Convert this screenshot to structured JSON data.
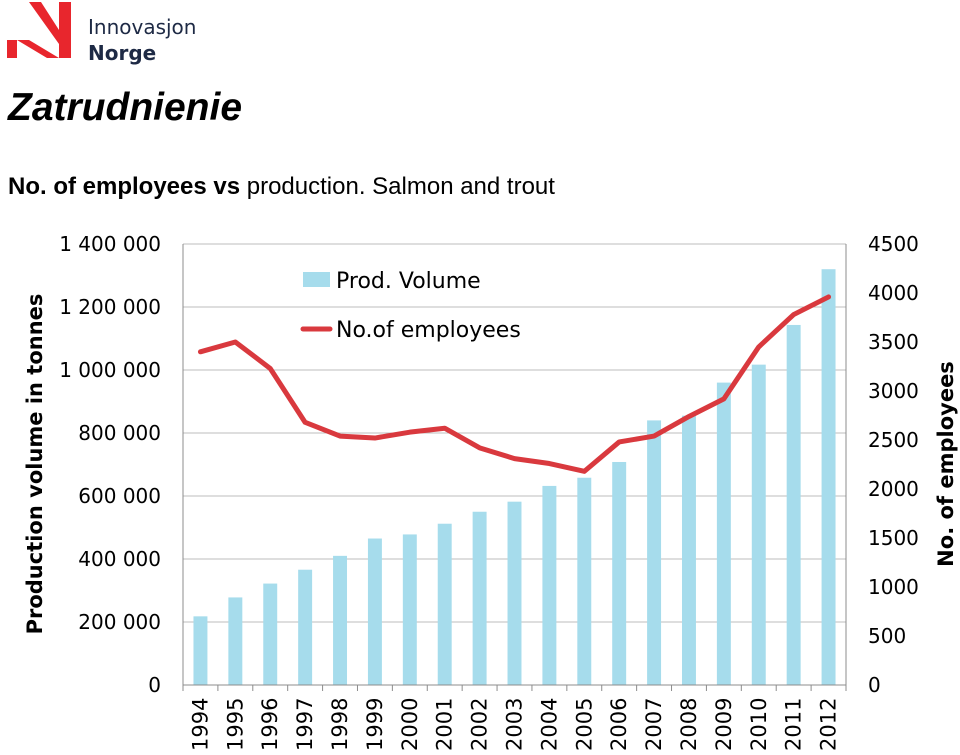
{
  "brand": {
    "line1": "Innovasjon",
    "line2": "Norge",
    "logo_color": "#e8262d",
    "text_color": "#1e2a45"
  },
  "page": {
    "title": "Zatrudnienie",
    "subtitle_part1": "No. of employees vs",
    "subtitle_part2": " production. Salmon and trout"
  },
  "chart_data": {
    "type": "bar",
    "categories": [
      "1994",
      "1995",
      "1996",
      "1997",
      "1998",
      "1999",
      "2000",
      "2001",
      "2002",
      "2003",
      "2004",
      "2005",
      "2006",
      "2007",
      "2008",
      "2009",
      "2010",
      "2011",
      "2012"
    ],
    "series": [
      {
        "name": "Prod. Volume",
        "type": "bar",
        "axis": "left",
        "color": "#a6dcec",
        "values": [
          218000,
          278000,
          322000,
          366000,
          410000,
          465000,
          478000,
          512000,
          550000,
          582000,
          632000,
          658000,
          708000,
          840000,
          855000,
          960000,
          1017000,
          1143000,
          1320000
        ]
      },
      {
        "name": "No.of employees",
        "type": "line",
        "axis": "right",
        "color": "#d9393e",
        "values": [
          3400,
          3500,
          3230,
          2680,
          2540,
          2520,
          2580,
          2620,
          2420,
          2310,
          2260,
          2180,
          2480,
          2540,
          2740,
          2920,
          3450,
          3780,
          3960
        ]
      }
    ],
    "y_left": {
      "label": "Production volume in tonnes",
      "range": [
        0,
        1400000
      ],
      "ticks": [
        0,
        200000,
        400000,
        600000,
        800000,
        1000000,
        1200000,
        1400000
      ],
      "tick_labels": [
        "0",
        "200 000",
        "400 000",
        "600 000",
        "800 000",
        "1 000 000",
        "1 200 000",
        "1 400 000"
      ]
    },
    "y_right": {
      "label": "No. of employees",
      "range": [
        0,
        4500
      ],
      "ticks": [
        0,
        500,
        1000,
        1500,
        2000,
        2500,
        3000,
        3500,
        4000,
        4500
      ],
      "tick_labels": [
        "0",
        "500",
        "1000",
        "1500",
        "2000",
        "2500",
        "3000",
        "3500",
        "4000",
        "4500"
      ]
    },
    "grid": true,
    "legend_position": "top-left"
  }
}
